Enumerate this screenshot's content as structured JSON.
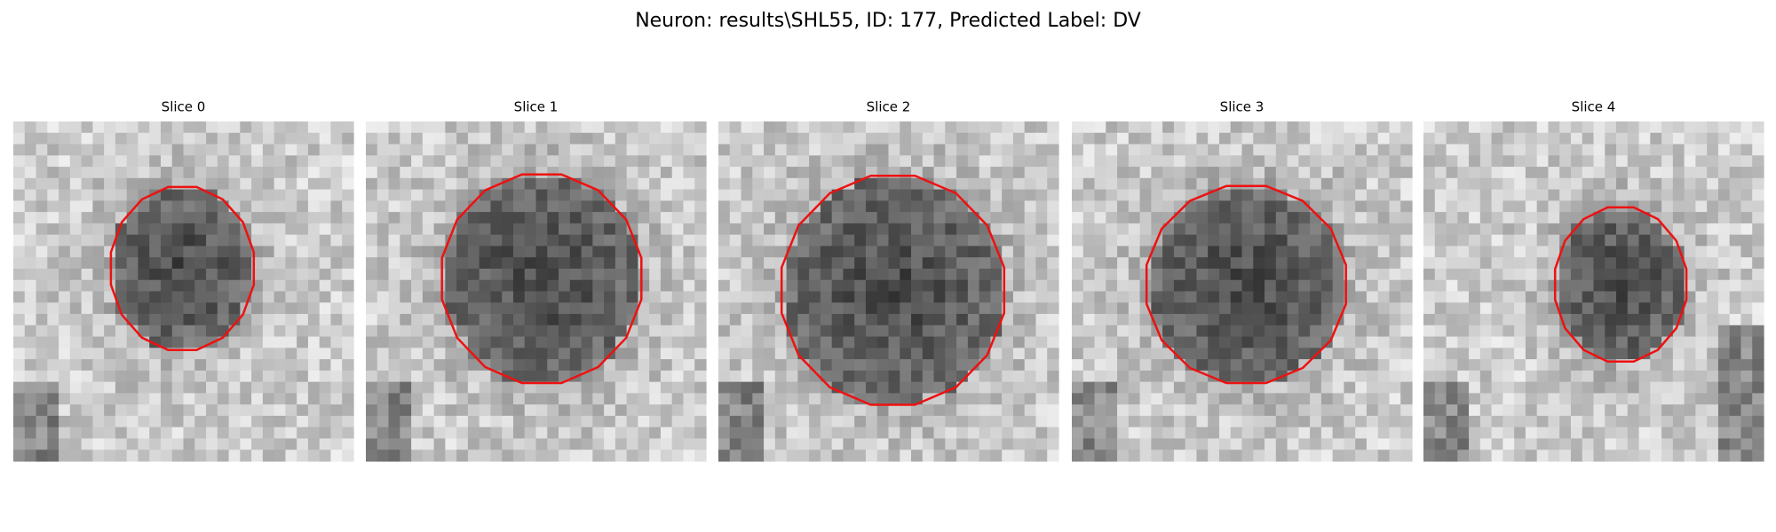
{
  "title": "Neuron: results\\SHL55, ID: 177, Predicted Label: DV",
  "panels": [
    {
      "label": "Slice 0"
    },
    {
      "label": "Slice 1"
    },
    {
      "label": "Slice 2"
    },
    {
      "label": "Slice 3"
    },
    {
      "label": "Slice 4"
    }
  ]
}
